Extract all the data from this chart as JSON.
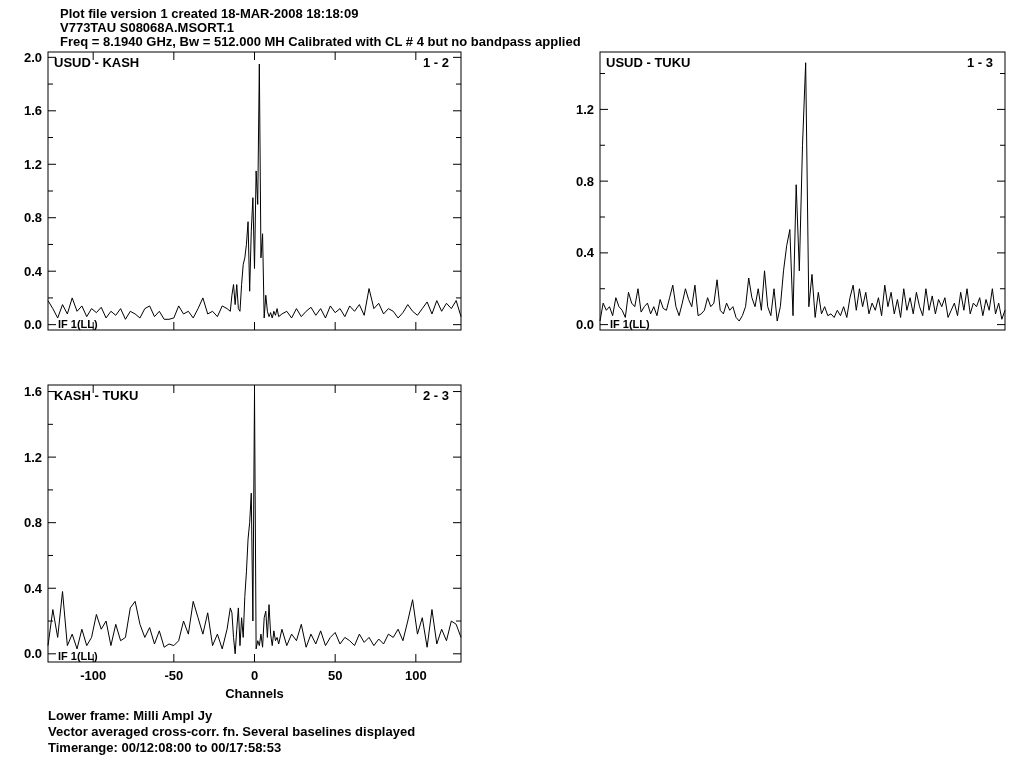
{
  "chart_data": [
    {
      "type": "line",
      "title": "Plot file version 1  created 18-MAR-2008 18:18:09",
      "subtitle": "V773TAU   S08068A.MSORT.1",
      "annotations": [
        "USUD - KASH",
        "1 - 2",
        "IF 1(LL)",
        "Freq = 8.1940 GHz, Bw = 512.000 MH   Calibrated with CL # 4 but no bandpass applied"
      ],
      "tick_labels": "y",
      "xlim": [
        -128,
        128
      ],
      "ylim": [
        -0.04,
        2.04
      ],
      "xticks": [
        -100,
        -50,
        0,
        50,
        100
      ],
      "yticks": [
        {
          "value": 0,
          "label": "0.0"
        },
        {
          "value": 0.2,
          "label": null
        },
        {
          "value": 0.4,
          "label": "0.4"
        },
        {
          "value": 0.6,
          "label": null
        },
        {
          "value": 0.8,
          "label": "0.8"
        },
        {
          "value": 1,
          "label": null
        },
        {
          "value": 1.2,
          "label": "1.2"
        },
        {
          "value": 1.4,
          "label": null
        },
        {
          "value": 1.6,
          "label": "1.6"
        },
        {
          "value": 1.8,
          "label": null
        },
        {
          "value": 2,
          "label": "2.0"
        }
      ],
      "x": [
        -128,
        -125,
        -122,
        -119,
        -116,
        -113,
        -110,
        -107,
        -104,
        -101,
        -98,
        -95,
        -92,
        -89,
        -86,
        -83,
        -80,
        -77,
        -74,
        -71,
        -68,
        -65,
        -62,
        -59,
        -56,
        -53,
        -50,
        -47,
        -44,
        -41,
        -38,
        -35,
        -32,
        -29,
        -26,
        -23,
        -20,
        -17,
        -15,
        -14,
        -13,
        -12,
        -11,
        -10,
        -9,
        -8,
        -7,
        -6,
        -5,
        -4,
        -3,
        -2,
        -1,
        0,
        1,
        2,
        3,
        4,
        5,
        6,
        7,
        8,
        9,
        10,
        11,
        12,
        13,
        14,
        15,
        17,
        20,
        23,
        26,
        29,
        32,
        35,
        38,
        41,
        44,
        47,
        50,
        53,
        56,
        59,
        62,
        65,
        68,
        71,
        74,
        77,
        80,
        83,
        86,
        89,
        92,
        95,
        98,
        101,
        104,
        107,
        110,
        113,
        116,
        119,
        122,
        125,
        128
      ],
      "series": [
        {
          "color": "#000000",
          "values": [
            0.18,
            0.12,
            0.05,
            0.15,
            0.08,
            0.2,
            0.1,
            0.14,
            0.06,
            0.12,
            0.09,
            0.13,
            0.05,
            0.1,
            0.07,
            0.12,
            0.04,
            0.1,
            0.08,
            0.05,
            0.12,
            0.14,
            0.06,
            0.1,
            0.04,
            0.04,
            0.05,
            0.14,
            0.08,
            0.1,
            0.05,
            0.12,
            0.2,
            0.08,
            0.1,
            0.06,
            0.14,
            0.12,
            0.1,
            0.22,
            0.3,
            0.15,
            0.3,
            0.12,
            0.1,
            0.3,
            0.45,
            0.5,
            0.6,
            0.77,
            0.25,
            0.7,
            0.95,
            0.42,
            1.15,
            0.9,
            1.95,
            0.5,
            0.68,
            0.05,
            0.22,
            0.1,
            0.06,
            0.09,
            0.05,
            0.1,
            0.07,
            0.12,
            0.06,
            0.08,
            0.1,
            0.05,
            0.12,
            0.06,
            0.1,
            0.13,
            0.07,
            0.12,
            0.05,
            0.14,
            0.09,
            0.12,
            0.06,
            0.14,
            0.1,
            0.15,
            0.07,
            0.27,
            0.12,
            0.16,
            0.08,
            0.12,
            0.1,
            0.05,
            0.09,
            0.15,
            0.1,
            0.07,
            0.12,
            0.17,
            0.08,
            0.18,
            0.1,
            0.16,
            0.12,
            0.18,
            0.06
          ]
        }
      ]
    },
    {
      "type": "line",
      "annotations": [
        "USUD - TUKU",
        "1 - 3",
        "IF 1(LL)"
      ],
      "tick_labels": "y",
      "ylim": [
        -0.03,
        1.52
      ],
      "yticks": [
        {
          "value": 0,
          "label": "0.0"
        },
        {
          "value": 0.2,
          "label": null
        },
        {
          "value": 0.4,
          "label": "0.4"
        },
        {
          "value": 0.6,
          "label": null
        },
        {
          "value": 0.8,
          "label": "0.8"
        },
        {
          "value": 1,
          "label": null
        },
        {
          "value": 1.2,
          "label": "1.2"
        },
        {
          "value": 1.4,
          "label": null
        }
      ],
      "categories": [
        null,
        null,
        null,
        null,
        null,
        null,
        null,
        null,
        null,
        null,
        null,
        null,
        null,
        null,
        null,
        null,
        null,
        null,
        null,
        null,
        null,
        null,
        null,
        null,
        null,
        null,
        null,
        null,
        null,
        null,
        null,
        null,
        null,
        null,
        null,
        null,
        null,
        null,
        null,
        null,
        null,
        null,
        null,
        null,
        null,
        null,
        null,
        null,
        null,
        null,
        null,
        null,
        null,
        null,
        null,
        null,
        null,
        null,
        null,
        null,
        null,
        null,
        null,
        null,
        null,
        null,
        null,
        null,
        null,
        null,
        null,
        null,
        null,
        null,
        null,
        null,
        null,
        null,
        null,
        null,
        null,
        null,
        null,
        null,
        null,
        null,
        null,
        null,
        null,
        null,
        null,
        null,
        null,
        null,
        null,
        null,
        null,
        null,
        null,
        null,
        null,
        null,
        null,
        null,
        null,
        null,
        null,
        null,
        null,
        null,
        null,
        null,
        null,
        null,
        null,
        null,
        null,
        null,
        null,
        null,
        null,
        null,
        null,
        null,
        null,
        null,
        null,
        null,
        null
      ],
      "series": [
        {
          "color": "#000000",
          "values": [
            0.02,
            0.12,
            0.08,
            0.1,
            0.05,
            0.15,
            0.1,
            0.08,
            0.04,
            0.18,
            0.12,
            0.1,
            0.2,
            0.07,
            0.1,
            0.12,
            0.06,
            0.1,
            0.05,
            0.14,
            0.09,
            0.08,
            0.15,
            0.22,
            0.1,
            0.05,
            0.12,
            0.2,
            0.14,
            0.1,
            0.22,
            0.05,
            0.06,
            0.08,
            0.15,
            0.1,
            0.12,
            0.25,
            0.08,
            0.06,
            0.12,
            0.08,
            0.1,
            0.04,
            0.02,
            0.05,
            0.1,
            0.26,
            0.15,
            0.1,
            0.2,
            0.08,
            0.3,
            0.1,
            0.05,
            0.2,
            0.02,
            0.1,
            0.3,
            0.44,
            0.53,
            0.05,
            0.78,
            0.3,
            1.0,
            1.46,
            0.1,
            0.28,
            0.04,
            0.18,
            0.06,
            0.1,
            0.05,
            0.06,
            0.04,
            0.08,
            0.05,
            0.1,
            0.04,
            0.15,
            0.22,
            0.08,
            0.2,
            0.1,
            0.18,
            0.06,
            0.12,
            0.08,
            0.15,
            0.05,
            0.22,
            0.1,
            0.18,
            0.06,
            0.14,
            0.04,
            0.2,
            0.08,
            0.15,
            0.06,
            0.18,
            0.1,
            0.05,
            0.2,
            0.08,
            0.16,
            0.06,
            0.14,
            0.1,
            0.15,
            0.04,
            0.08,
            0.12,
            0.05,
            0.18,
            0.08,
            0.2,
            0.06,
            0.12,
            0.1,
            0.15,
            0.05,
            0.14,
            0.08,
            0.2,
            0.06,
            0.12,
            0.03,
            0.08
          ]
        }
      ]
    },
    {
      "type": "line",
      "xlabel": "Channels",
      "annotations": [
        "KASH - TUKU",
        "2 - 3",
        "IF 1(LL)",
        "Lower frame: Milli Ampl Jy",
        "Vector averaged cross-corr. fn.    Several baselines displayed",
        "Timerange: 00/12:08:00 to 00/17:58:53"
      ],
      "xlim": [
        -128,
        128
      ],
      "ylim": [
        -0.05,
        1.64
      ],
      "xticks": [
        -100,
        -50,
        0,
        50,
        100
      ],
      "yticks": [
        {
          "value": 0,
          "label": "0.0"
        },
        {
          "value": 0.2,
          "label": null
        },
        {
          "value": 0.4,
          "label": "0.4"
        },
        {
          "value": 0.6,
          "label": null
        },
        {
          "value": 0.8,
          "label": "0.8"
        },
        {
          "value": 1,
          "label": null
        },
        {
          "value": 1.2,
          "label": "1.2"
        },
        {
          "value": 1.4,
          "label": null
        },
        {
          "value": 1.6,
          "label": "1.6"
        }
      ],
      "x": [
        -128,
        -125,
        -122,
        -119,
        -116,
        -113,
        -110,
        -107,
        -104,
        -101,
        -98,
        -95,
        -92,
        -89,
        -86,
        -83,
        -80,
        -77,
        -74,
        -71,
        -68,
        -65,
        -62,
        -59,
        -56,
        -53,
        -50,
        -47,
        -44,
        -41,
        -38,
        -35,
        -32,
        -29,
        -26,
        -23,
        -20,
        -17,
        -15,
        -14,
        -13,
        -12,
        -11,
        -10,
        -9,
        -8,
        -7,
        -6,
        -5,
        -4,
        -3,
        -2,
        -1,
        0,
        1,
        2,
        3,
        4,
        5,
        6,
        7,
        8,
        9,
        10,
        11,
        12,
        13,
        14,
        15,
        17,
        20,
        23,
        26,
        29,
        32,
        35,
        38,
        41,
        44,
        47,
        50,
        53,
        56,
        59,
        62,
        65,
        68,
        71,
        74,
        77,
        80,
        83,
        86,
        89,
        92,
        95,
        98,
        101,
        104,
        107,
        110,
        113,
        116,
        119,
        122,
        125,
        128
      ],
      "series": [
        {
          "color": "#000000",
          "values": [
            0.05,
            0.27,
            0.1,
            0.38,
            0.05,
            0.12,
            0.03,
            0.15,
            0.05,
            0.1,
            0.24,
            0.15,
            0.2,
            0.05,
            0.18,
            0.08,
            0.1,
            0.28,
            0.32,
            0.18,
            0.1,
            0.16,
            0.06,
            0.14,
            0.04,
            0.06,
            0.05,
            0.08,
            0.2,
            0.12,
            0.32,
            0.22,
            0.12,
            0.25,
            0.05,
            0.12,
            0.03,
            0.15,
            0.28,
            0.25,
            0.1,
            0.0,
            0.15,
            0.28,
            0.05,
            0.22,
            0.1,
            0.35,
            0.5,
            0.7,
            0.8,
            0.98,
            0.2,
            1.6,
            0.03,
            0.08,
            0.05,
            0.12,
            0.04,
            0.22,
            0.26,
            0.1,
            0.3,
            0.12,
            0.05,
            0.14,
            0.08,
            0.1,
            0.06,
            0.15,
            0.05,
            0.12,
            0.08,
            0.18,
            0.04,
            0.12,
            0.06,
            0.14,
            0.05,
            0.1,
            0.13,
            0.06,
            0.1,
            0.08,
            0.05,
            0.12,
            0.07,
            0.1,
            0.05,
            0.09,
            0.06,
            0.12,
            0.1,
            0.15,
            0.08,
            0.2,
            0.33,
            0.12,
            0.22,
            0.04,
            0.27,
            0.06,
            0.15,
            0.08,
            0.2,
            0.18,
            0.1
          ]
        }
      ]
    }
  ]
}
